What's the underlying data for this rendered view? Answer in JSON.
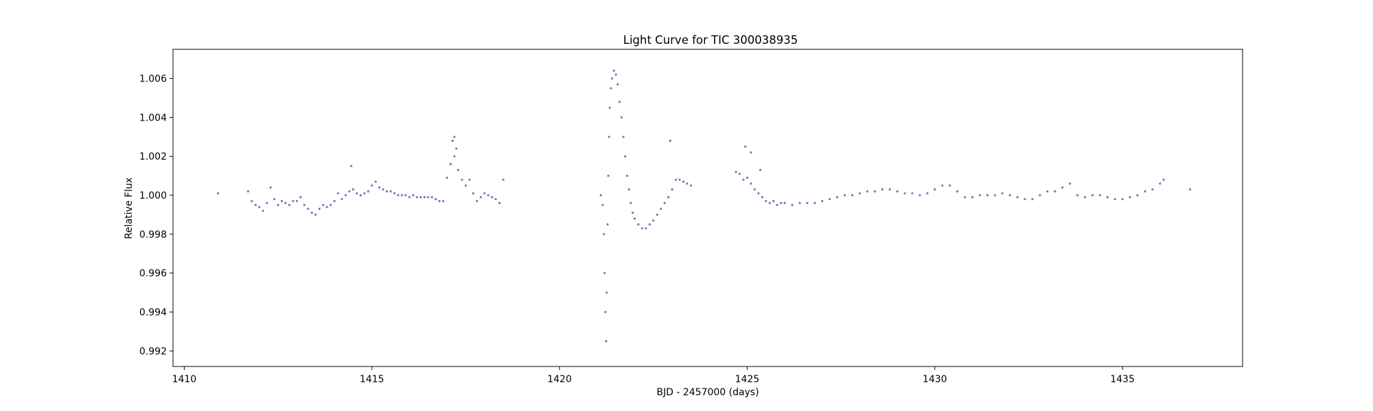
{
  "chart_data": {
    "type": "scatter",
    "title": "Light Curve for TIC 300038935",
    "xlabel": "BJD - 2457000 (days)",
    "ylabel": "Relative Flux",
    "xlim": [
      1409.7,
      1438.2
    ],
    "ylim": [
      0.9912,
      1.0075
    ],
    "xticks": [
      1410,
      1415,
      1420,
      1425,
      1430,
      1435
    ],
    "xtick_labels": [
      "1410",
      "1415",
      "1420",
      "1425",
      "1430",
      "1435"
    ],
    "yticks": [
      0.992,
      0.994,
      0.996,
      0.998,
      1.0,
      1.002,
      1.004,
      1.006
    ],
    "ytick_labels": [
      "0.992",
      "0.994",
      "0.996",
      "0.998",
      "1.000",
      "1.002",
      "1.004",
      "1.006"
    ],
    "grid": false,
    "marker_color": "#9467bd",
    "series": [
      {
        "points": [
          [
            1410.9,
            1.0001
          ],
          [
            1411.7,
            1.0002
          ],
          [
            1411.8,
            0.9997
          ],
          [
            1411.9,
            0.9995
          ],
          [
            1412.0,
            0.9994
          ],
          [
            1412.1,
            0.9992
          ],
          [
            1412.2,
            0.9996
          ],
          [
            1412.3,
            1.0004
          ],
          [
            1412.4,
            0.9998
          ],
          [
            1412.5,
            0.9995
          ],
          [
            1412.6,
            0.9997
          ],
          [
            1412.7,
            0.9996
          ],
          [
            1412.8,
            0.9995
          ],
          [
            1412.9,
            0.9997
          ],
          [
            1413.0,
            0.9997
          ],
          [
            1413.1,
            0.9999
          ],
          [
            1413.2,
            0.9995
          ],
          [
            1413.3,
            0.9993
          ],
          [
            1413.4,
            0.9991
          ],
          [
            1413.5,
            0.999
          ],
          [
            1413.6,
            0.9993
          ],
          [
            1413.7,
            0.9995
          ],
          [
            1413.8,
            0.9994
          ],
          [
            1413.9,
            0.9995
          ],
          [
            1414.0,
            0.9997
          ],
          [
            1414.1,
            1.0001
          ],
          [
            1414.2,
            0.9998
          ],
          [
            1414.3,
            1.0
          ],
          [
            1414.4,
            1.0002
          ],
          [
            1414.5,
            1.0003
          ],
          [
            1414.6,
            1.0001
          ],
          [
            1414.7,
            1.0
          ],
          [
            1414.8,
            1.0001
          ],
          [
            1414.9,
            1.0002
          ],
          [
            1415.0,
            1.0005
          ],
          [
            1415.1,
            1.0007
          ],
          [
            1415.2,
            1.0004
          ],
          [
            1415.3,
            1.0003
          ],
          [
            1415.4,
            1.0002
          ],
          [
            1415.5,
            1.0002
          ],
          [
            1415.6,
            1.0001
          ],
          [
            1415.7,
            1.0
          ],
          [
            1415.8,
            1.0
          ],
          [
            1415.9,
            1.0
          ],
          [
            1416.0,
            0.9999
          ],
          [
            1416.1,
            1.0
          ],
          [
            1416.2,
            0.9999
          ],
          [
            1416.3,
            0.9999
          ],
          [
            1416.4,
            0.9999
          ],
          [
            1416.5,
            0.9999
          ],
          [
            1416.6,
            0.9999
          ],
          [
            1416.7,
            0.9998
          ],
          [
            1416.8,
            0.9997
          ],
          [
            1416.9,
            0.9997
          ],
          [
            1417.0,
            1.0009
          ],
          [
            1417.1,
            1.0016
          ],
          [
            1417.15,
            1.0028
          ],
          [
            1417.2,
            1.002
          ],
          [
            1417.25,
            1.0024
          ],
          [
            1417.3,
            1.0013
          ],
          [
            1417.4,
            1.0008
          ],
          [
            1417.5,
            1.0005
          ],
          [
            1417.6,
            1.0008
          ],
          [
            1417.7,
            1.0001
          ],
          [
            1417.8,
            0.9997
          ],
          [
            1417.9,
            0.9999
          ],
          [
            1418.0,
            1.0001
          ],
          [
            1418.1,
            1.0
          ],
          [
            1418.2,
            0.9999
          ],
          [
            1418.3,
            0.9998
          ],
          [
            1418.4,
            0.9996
          ],
          [
            1418.5,
            1.0008
          ],
          [
            1421.1,
            1.0
          ],
          [
            1421.15,
            0.9995
          ],
          [
            1421.18,
            0.998
          ],
          [
            1421.2,
            0.996
          ],
          [
            1421.22,
            0.994
          ],
          [
            1421.24,
            0.9925
          ],
          [
            1421.26,
            0.995
          ],
          [
            1421.28,
            0.9985
          ],
          [
            1421.3,
            1.001
          ],
          [
            1421.32,
            1.003
          ],
          [
            1421.34,
            1.0045
          ],
          [
            1421.37,
            1.0055
          ],
          [
            1421.4,
            1.006
          ],
          [
            1421.45,
            1.0064
          ],
          [
            1421.5,
            1.0062
          ],
          [
            1421.55,
            1.0057
          ],
          [
            1421.6,
            1.0048
          ],
          [
            1421.65,
            1.004
          ],
          [
            1421.7,
            1.003
          ],
          [
            1421.75,
            1.002
          ],
          [
            1421.8,
            1.001
          ],
          [
            1421.85,
            1.0003
          ],
          [
            1421.9,
            0.9996
          ],
          [
            1421.95,
            0.9991
          ],
          [
            1422.0,
            0.9988
          ],
          [
            1422.1,
            0.9985
          ],
          [
            1422.2,
            0.9983
          ],
          [
            1422.3,
            0.9983
          ],
          [
            1422.4,
            0.9985
          ],
          [
            1422.5,
            0.9987
          ],
          [
            1422.6,
            0.999
          ],
          [
            1422.7,
            0.9993
          ],
          [
            1422.8,
            0.9996
          ],
          [
            1422.9,
            0.9999
          ],
          [
            1423.0,
            1.0003
          ],
          [
            1423.1,
            1.0008
          ],
          [
            1423.2,
            1.0008
          ],
          [
            1423.3,
            1.0007
          ],
          [
            1423.4,
            1.0006
          ],
          [
            1423.5,
            1.0005
          ],
          [
            1422.95,
            1.0028
          ],
          [
            1424.7,
            1.0012
          ],
          [
            1424.8,
            1.0011
          ],
          [
            1424.9,
            1.0008
          ],
          [
            1425.0,
            1.0009
          ],
          [
            1425.1,
            1.0006
          ],
          [
            1425.2,
            1.0003
          ],
          [
            1425.3,
            1.0001
          ],
          [
            1425.4,
            0.9999
          ],
          [
            1425.5,
            0.9997
          ],
          [
            1425.6,
            0.9996
          ],
          [
            1425.7,
            0.9997
          ],
          [
            1425.8,
            0.9995
          ],
          [
            1425.9,
            0.9996
          ],
          [
            1426.0,
            0.9996
          ],
          [
            1426.2,
            0.9995
          ],
          [
            1426.4,
            0.9996
          ],
          [
            1426.6,
            0.9996
          ],
          [
            1426.8,
            0.9996
          ],
          [
            1427.0,
            0.9997
          ],
          [
            1427.2,
            0.9998
          ],
          [
            1427.4,
            0.9999
          ],
          [
            1427.6,
            1.0
          ],
          [
            1427.8,
            1.0
          ],
          [
            1428.0,
            1.0001
          ],
          [
            1428.2,
            1.0002
          ],
          [
            1428.4,
            1.0002
          ],
          [
            1428.6,
            1.0003
          ],
          [
            1428.8,
            1.0003
          ],
          [
            1429.0,
            1.0002
          ],
          [
            1429.2,
            1.0001
          ],
          [
            1429.4,
            1.0001
          ],
          [
            1429.6,
            1.0
          ],
          [
            1429.8,
            1.0001
          ],
          [
            1430.0,
            1.0003
          ],
          [
            1430.2,
            1.0005
          ],
          [
            1430.4,
            1.0005
          ],
          [
            1430.6,
            1.0002
          ],
          [
            1430.8,
            0.9999
          ],
          [
            1431.0,
            0.9999
          ],
          [
            1431.2,
            1.0
          ],
          [
            1431.4,
            1.0
          ],
          [
            1431.6,
            1.0
          ],
          [
            1431.8,
            1.0001
          ],
          [
            1432.0,
            1.0
          ],
          [
            1432.2,
            0.9999
          ],
          [
            1432.4,
            0.9998
          ],
          [
            1432.6,
            0.9998
          ],
          [
            1432.8,
            1.0
          ],
          [
            1433.0,
            1.0002
          ],
          [
            1433.2,
            1.0002
          ],
          [
            1433.4,
            1.0004
          ],
          [
            1433.6,
            1.0006
          ],
          [
            1433.8,
            1.0
          ],
          [
            1434.0,
            0.9999
          ],
          [
            1434.2,
            1.0
          ],
          [
            1434.4,
            1.0
          ],
          [
            1434.6,
            0.9999
          ],
          [
            1434.8,
            0.9998
          ],
          [
            1435.0,
            0.9998
          ],
          [
            1435.2,
            0.9999
          ],
          [
            1435.4,
            1.0
          ],
          [
            1435.6,
            1.0002
          ],
          [
            1435.8,
            1.0003
          ],
          [
            1436.0,
            1.0006
          ],
          [
            1436.1,
            1.0008
          ],
          [
            1436.8,
            1.0003
          ],
          [
            1424.95,
            1.0025
          ],
          [
            1425.1,
            1.0022
          ],
          [
            1425.35,
            1.0013
          ],
          [
            1414.45,
            1.0015
          ],
          [
            1417.2,
            1.003
          ]
        ]
      }
    ]
  }
}
